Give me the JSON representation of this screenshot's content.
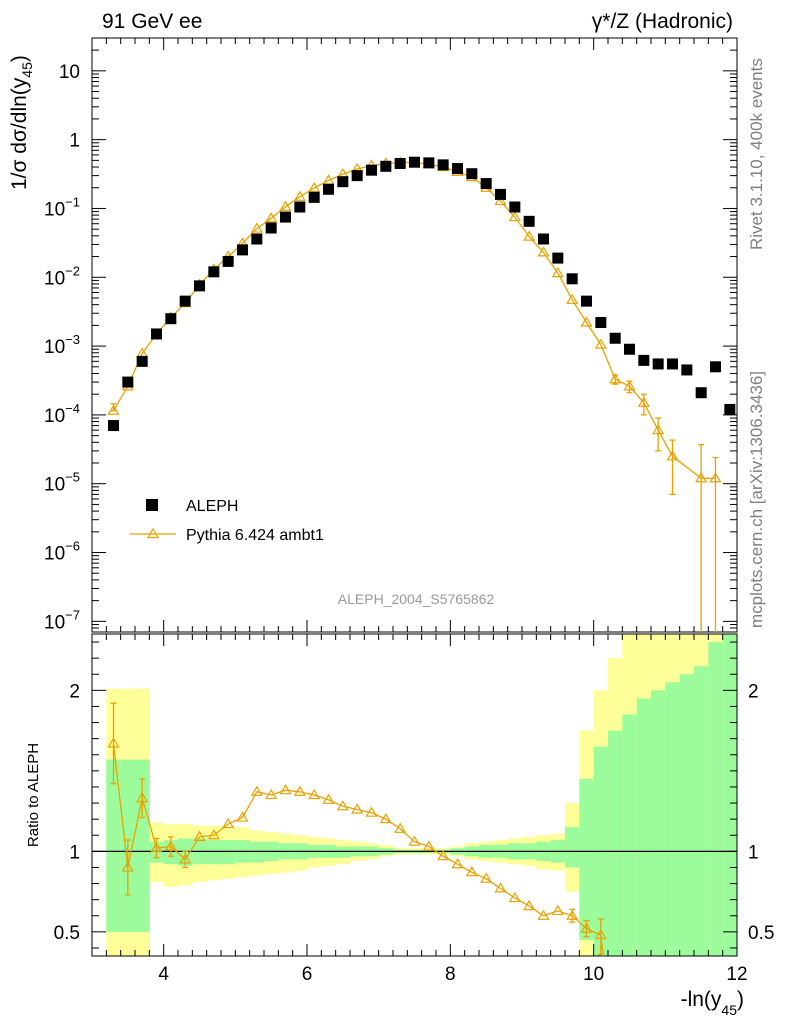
{
  "header": {
    "left": "91 GeV ee",
    "right": "γ*/Z (Hadronic)"
  },
  "side_labels": {
    "rivet": "Rivet 3.1.10,  400k events",
    "mcplots": "mcplots.cern.ch [arXiv:1306.3436]"
  },
  "analysis_label": "ALEPH_2004_S5765862",
  "colors": {
    "data": "#000000",
    "mc": "#e8a200",
    "band_inner": "#9cfc9c",
    "band_outer": "#ffff99"
  },
  "chart_data": [
    {
      "type": "scatter",
      "title": "91 GeV ee",
      "ylabel_main": "1/σ  dσ/dln(y",
      "ylabel_sub": "45",
      "ylabel_close": ")",
      "yscale": "log",
      "xlim": [
        3.0,
        12.0
      ],
      "ylim": [
        7e-08,
        30
      ],
      "y_tick_labels": [
        {
          "value": 10,
          "text": "10"
        },
        {
          "value": 1,
          "text": "1"
        },
        {
          "value": 0.1,
          "base": "10",
          "exp": "−1"
        },
        {
          "value": 0.01,
          "base": "10",
          "exp": "−2"
        },
        {
          "value": 0.001,
          "base": "10",
          "exp": "−3"
        },
        {
          "value": 0.0001,
          "base": "10",
          "exp": "−4"
        },
        {
          "value": 1e-05,
          "base": "10",
          "exp": "−5"
        },
        {
          "value": 1e-06,
          "base": "10",
          "exp": "−6"
        },
        {
          "value": 1e-07,
          "base": "10",
          "exp": "−7"
        }
      ],
      "legend_position": "middle-left",
      "series": [
        {
          "name": "ALEPH",
          "marker": "square",
          "x": [
            3.3,
            3.5,
            3.7,
            3.9,
            4.1,
            4.3,
            4.5,
            4.7,
            4.9,
            5.1,
            5.3,
            5.5,
            5.7,
            5.9,
            6.1,
            6.3,
            6.5,
            6.7,
            6.9,
            7.1,
            7.3,
            7.5,
            7.7,
            7.9,
            8.1,
            8.3,
            8.5,
            8.7,
            8.9,
            9.1,
            9.3,
            9.5,
            9.7,
            9.9,
            10.1,
            10.3,
            10.5,
            10.7,
            10.9,
            11.1,
            11.3,
            11.5,
            11.7,
            11.9
          ],
          "values": [
            7e-05,
            0.0003,
            0.0006,
            0.0015,
            0.0025,
            0.0045,
            0.0075,
            0.012,
            0.017,
            0.025,
            0.036,
            0.052,
            0.075,
            0.105,
            0.145,
            0.19,
            0.245,
            0.3,
            0.36,
            0.41,
            0.45,
            0.47,
            0.46,
            0.43,
            0.38,
            0.32,
            0.23,
            0.16,
            0.105,
            0.065,
            0.036,
            0.019,
            0.0095,
            0.0045,
            0.0022,
            0.0013,
            0.0009,
            0.00062,
            0.00055,
            0.00055,
            0.00045,
            0.00021,
            0.0005,
            0.00012
          ]
        },
        {
          "name": "Pythia 6.424 ambt1",
          "marker": "open-triangle",
          "x": [
            3.3,
            3.5,
            3.7,
            3.9,
            4.1,
            4.3,
            4.5,
            4.7,
            4.9,
            5.1,
            5.3,
            5.5,
            5.7,
            5.9,
            6.1,
            6.3,
            6.5,
            6.7,
            6.9,
            7.1,
            7.3,
            7.5,
            7.7,
            7.9,
            8.1,
            8.3,
            8.5,
            8.7,
            8.9,
            9.1,
            9.3,
            9.5,
            9.7,
            9.9,
            10.1,
            10.3,
            10.5,
            10.7,
            10.9,
            11.1,
            11.5,
            11.7
          ],
          "values": [
            0.000115,
            0.00026,
            0.00078,
            0.0015,
            0.0026,
            0.0042,
            0.0078,
            0.013,
            0.02,
            0.031,
            0.051,
            0.072,
            0.106,
            0.148,
            0.198,
            0.255,
            0.315,
            0.375,
            0.42,
            0.45,
            0.465,
            0.465,
            0.44,
            0.4,
            0.34,
            0.285,
            0.2,
            0.128,
            0.075,
            0.039,
            0.023,
            0.0115,
            0.0047,
            0.0022,
            0.00105,
            0.00033,
            0.00026,
            0.00015,
            6e-05,
            2.5e-05,
            1.2e-05,
            1.2e-05
          ],
          "err_low": [
            0,
            0,
            0,
            0,
            0,
            0,
            0,
            0,
            0,
            0,
            0,
            0,
            0,
            0,
            0,
            0,
            0,
            0,
            0,
            0,
            0,
            0,
            0,
            0,
            0,
            0,
            0,
            0,
            0,
            0,
            0,
            0,
            0,
            0,
            0,
            5e-05,
            5e-05,
            5e-05,
            3e-05,
            1.8e-05,
            1.2e-05,
            1.2e-05
          ],
          "err_high": [
            3e-05,
            5e-05,
            0,
            0,
            0,
            0,
            0,
            0,
            0,
            0,
            0,
            0,
            0,
            0,
            0,
            0,
            0,
            0,
            0,
            0,
            0,
            0,
            0,
            0,
            0,
            0,
            0,
            0,
            0,
            0,
            0,
            0,
            0,
            0,
            0,
            5e-05,
            5e-05,
            5e-05,
            3e-05,
            1.8e-05,
            2.5e-05,
            1.2e-05
          ]
        }
      ]
    },
    {
      "type": "line",
      "ylabel": "Ratio to ALEPH",
      "xlabel_main": "-ln(y",
      "xlabel_sub": "45",
      "xlabel_close": ")",
      "xlim": [
        3.0,
        12.0
      ],
      "ylim": [
        0.35,
        2.35
      ],
      "x_ticks": [
        4,
        6,
        8,
        10,
        12
      ],
      "x_tick_labels": [
        "4",
        "6",
        "8",
        "10",
        "12"
      ],
      "y_ticks": [
        0.5,
        1,
        2
      ],
      "y_tick_labels": [
        "0.5",
        "1",
        "2"
      ],
      "reference_line": 1,
      "uncertainty_bands": {
        "bin_edges": [
          3.2,
          3.4,
          3.6,
          3.8,
          4.0,
          4.2,
          4.4,
          4.6,
          4.8,
          5.0,
          5.2,
          5.4,
          5.6,
          5.8,
          6.0,
          6.2,
          6.4,
          6.6,
          6.8,
          7.0,
          7.2,
          7.4,
          7.6,
          7.8,
          8.0,
          8.2,
          8.4,
          8.6,
          8.8,
          9.0,
          9.2,
          9.4,
          9.6,
          9.8,
          10.0,
          10.2,
          10.4,
          10.6,
          10.8,
          11.0,
          11.2,
          11.4,
          11.6,
          11.8,
          12.0
        ],
        "inner_low": [
          0.5,
          0.5,
          0.5,
          0.93,
          0.92,
          0.91,
          0.92,
          0.92,
          0.92,
          0.93,
          0.93,
          0.94,
          0.95,
          0.95,
          0.96,
          0.96,
          0.96,
          0.97,
          0.97,
          0.98,
          0.99,
          0.99,
          0.99,
          0.99,
          0.98,
          0.97,
          0.96,
          0.96,
          0.95,
          0.95,
          0.94,
          0.93,
          0.9,
          0.45,
          0.35,
          0.35,
          0.35,
          0.35,
          0.35,
          0.35,
          0.35,
          0.35,
          0.35,
          0.35
        ],
        "inner_high": [
          1.57,
          1.57,
          1.57,
          1.06,
          1.07,
          1.08,
          1.08,
          1.07,
          1.07,
          1.07,
          1.06,
          1.06,
          1.05,
          1.05,
          1.04,
          1.04,
          1.03,
          1.03,
          1.03,
          1.02,
          1.01,
          1.01,
          1.01,
          1.01,
          1.02,
          1.03,
          1.04,
          1.04,
          1.05,
          1.05,
          1.06,
          1.07,
          1.15,
          1.45,
          1.65,
          1.75,
          1.85,
          1.95,
          2.0,
          2.05,
          2.1,
          2.15,
          2.3,
          2.35
        ],
        "outer_low": [
          0.35,
          0.35,
          0.35,
          0.81,
          0.78,
          0.79,
          0.81,
          0.82,
          0.83,
          0.84,
          0.85,
          0.86,
          0.87,
          0.88,
          0.9,
          0.91,
          0.92,
          0.94,
          0.95,
          0.97,
          0.98,
          0.98,
          0.98,
          0.98,
          0.97,
          0.95,
          0.94,
          0.93,
          0.92,
          0.91,
          0.89,
          0.88,
          0.75,
          0.35,
          0.35,
          0.35,
          0.35,
          0.35,
          0.35,
          0.35,
          0.35,
          0.35,
          0.35,
          0.35
        ],
        "outer_high": [
          2.01,
          2.01,
          2.01,
          1.18,
          1.17,
          1.17,
          1.16,
          1.16,
          1.15,
          1.15,
          1.13,
          1.12,
          1.11,
          1.1,
          1.09,
          1.08,
          1.07,
          1.06,
          1.05,
          1.04,
          1.02,
          1.02,
          1.02,
          1.02,
          1.03,
          1.05,
          1.06,
          1.07,
          1.08,
          1.09,
          1.1,
          1.11,
          1.3,
          1.75,
          2.0,
          2.2,
          2.35,
          2.35,
          2.35,
          2.35,
          2.35,
          2.35,
          2.35,
          2.35
        ]
      },
      "series": [
        {
          "name": "Pythia 6.424 ambt1 / ALEPH",
          "x": [
            3.3,
            3.5,
            3.7,
            3.9,
            4.1,
            4.3,
            4.5,
            4.7,
            4.9,
            5.1,
            5.3,
            5.5,
            5.7,
            5.9,
            6.1,
            6.3,
            6.5,
            6.7,
            6.9,
            7.1,
            7.3,
            7.5,
            7.7,
            7.9,
            8.1,
            8.3,
            8.5,
            8.7,
            8.9,
            9.1,
            9.3,
            9.5,
            9.7,
            9.9,
            10.1
          ],
          "values": [
            1.67,
            0.9,
            1.33,
            1.02,
            1.03,
            0.95,
            1.09,
            1.1,
            1.17,
            1.21,
            1.37,
            1.35,
            1.38,
            1.37,
            1.35,
            1.32,
            1.28,
            1.26,
            1.24,
            1.2,
            1.14,
            1.06,
            1.03,
            0.97,
            0.92,
            0.87,
            0.83,
            0.77,
            0.71,
            0.66,
            0.6,
            0.63,
            0.6,
            0.52,
            0.48
          ],
          "err_low": [
            0.25,
            0.17,
            0.12,
            0.06,
            0.06,
            0.05,
            0,
            0,
            0,
            0,
            0,
            0,
            0,
            0,
            0,
            0,
            0,
            0,
            0,
            0,
            0,
            0,
            0,
            0,
            0,
            0,
            0,
            0,
            0,
            0,
            0,
            0,
            0.04,
            0.05,
            0.12
          ],
          "err_high": [
            0.25,
            0.17,
            0.12,
            0.06,
            0.06,
            0.05,
            0,
            0,
            0,
            0,
            0,
            0,
            0,
            0,
            0,
            0,
            0,
            0,
            0,
            0,
            0,
            0,
            0,
            0,
            0,
            0,
            0,
            0,
            0,
            0,
            0,
            0,
            0.04,
            0.05,
            0.1
          ]
        }
      ]
    }
  ]
}
